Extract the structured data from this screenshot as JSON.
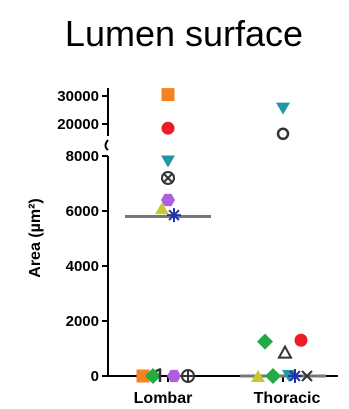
{
  "chart_data": {
    "type": "scatter",
    "title": "Lumen surface",
    "ylabel": "Area (µm²)",
    "xlabel": "",
    "categories": [
      "Lombar",
      "Thoracic"
    ],
    "y_axis_break": true,
    "ylim_lower": [
      0,
      8000
    ],
    "ylim_upper": [
      20000,
      30000
    ],
    "yticks_lower": [
      "0",
      "2000",
      "4000",
      "6000",
      "8000"
    ],
    "yticks_upper": [
      "20000",
      "30000"
    ],
    "grid": false,
    "legend": "none",
    "series": [
      {
        "marker": "square-filled",
        "color": "#f58220",
        "points": [
          {
            "x": "Lombar",
            "y": 30500
          },
          {
            "x": "Lombar",
            "y": 0
          }
        ]
      },
      {
        "marker": "circle-filled",
        "color": "#ed1c24",
        "points": [
          {
            "x": "Lombar",
            "y": 18500
          },
          {
            "x": "Thoracic",
            "y": 1300
          }
        ]
      },
      {
        "marker": "triangle-down-filled",
        "color": "#2196a6",
        "points": [
          {
            "x": "Lombar",
            "y": 7800
          },
          {
            "x": "Thoracic",
            "y": 25500
          },
          {
            "x": "Thoracic",
            "y": 0
          }
        ]
      },
      {
        "marker": "circle-x",
        "color": "#333333",
        "points": [
          {
            "x": "Lombar",
            "y": 7200
          }
        ]
      },
      {
        "marker": "hexagon-filled",
        "color": "#b05ee0",
        "points": [
          {
            "x": "Lombar",
            "y": 6400
          },
          {
            "x": "Lombar",
            "y": 0
          }
        ]
      },
      {
        "marker": "triangle-filled",
        "color": "#c8c832",
        "points": [
          {
            "x": "Lombar",
            "y": 6100
          },
          {
            "x": "Thoracic",
            "y": 0
          }
        ]
      },
      {
        "marker": "asterisk",
        "color": "#2233aa",
        "points": [
          {
            "x": "Lombar",
            "y": 5850
          },
          {
            "x": "Thoracic",
            "y": 0
          }
        ]
      },
      {
        "marker": "circle-open",
        "color": "#333333",
        "points": [
          {
            "x": "Thoracic",
            "y": 16500
          }
        ]
      },
      {
        "marker": "diamond-filled",
        "color": "#22aa44",
        "points": [
          {
            "x": "Lombar",
            "y": 0
          },
          {
            "x": "Thoracic",
            "y": 1250
          },
          {
            "x": "Thoracic",
            "y": 0
          }
        ]
      },
      {
        "marker": "triangle-open",
        "color": "#333333",
        "points": [
          {
            "x": "Thoracic",
            "y": 850
          }
        ]
      },
      {
        "marker": "circle-plus",
        "color": "#333333",
        "points": [
          {
            "x": "Lombar",
            "y": 0
          }
        ]
      },
      {
        "marker": "x-mark",
        "color": "#333333",
        "points": [
          {
            "x": "Thoracic",
            "y": 0
          }
        ]
      },
      {
        "marker": "tick-mark",
        "color": "#333333",
        "points": [
          {
            "x": "Lombar",
            "y": 0
          }
        ]
      }
    ],
    "median_lines": [
      {
        "x": "Lombar",
        "y": 5800,
        "color": "#777777"
      },
      {
        "x": "Thoracic",
        "y": 0,
        "color": "#777777"
      }
    ]
  }
}
